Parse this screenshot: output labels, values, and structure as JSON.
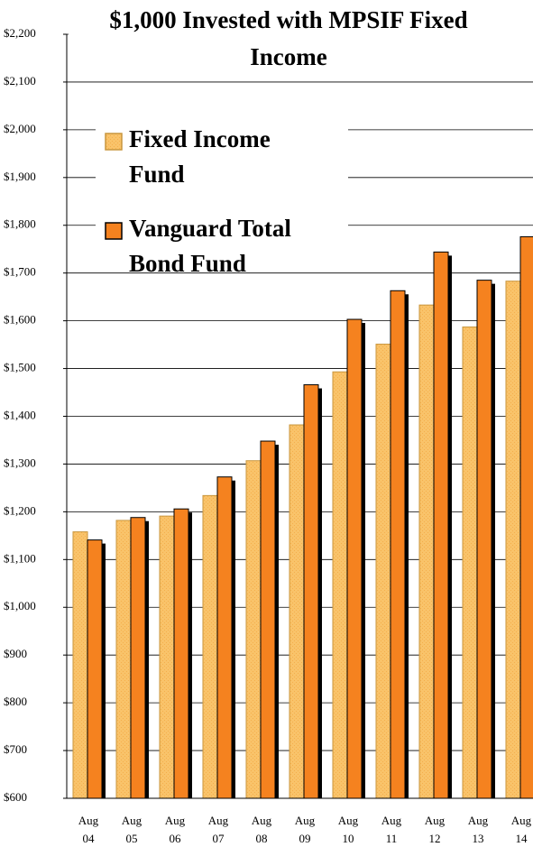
{
  "chart_data": {
    "type": "bar",
    "title": "$1,000 Invested with MPSIF Fixed Income",
    "categories": [
      "Aug 04",
      "Aug 05",
      "Aug 06",
      "Aug 07",
      "Aug 08",
      "Aug 09",
      "Aug 10",
      "Aug 11",
      "Aug 12",
      "Aug 13",
      "Aug 14"
    ],
    "series": [
      {
        "name": "Fixed Income Fund",
        "color": "#f9c36a",
        "values": [
          1158,
          1182,
          1191,
          1234,
          1307,
          1382,
          1493,
          1551,
          1633,
          1587,
          1683
        ]
      },
      {
        "name": "Vanguard Total Bond Fund",
        "color": "#f5821f",
        "values": [
          1141,
          1188,
          1206,
          1273,
          1348,
          1466,
          1603,
          1663,
          1744,
          1685,
          1776
        ]
      }
    ],
    "ylim": [
      600,
      2200
    ],
    "yticks": [
      {
        "value": 600,
        "label": "$600"
      },
      {
        "value": 700,
        "label": "$700"
      },
      {
        "value": 800,
        "label": "$800"
      },
      {
        "value": 900,
        "label": "$900"
      },
      {
        "value": 1000,
        "label": "$1,000"
      },
      {
        "value": 1100,
        "label": "$1,100"
      },
      {
        "value": 1200,
        "label": "$1,200"
      },
      {
        "value": 1300,
        "label": "$1,300"
      },
      {
        "value": 1400,
        "label": "$1,400"
      },
      {
        "value": 1500,
        "label": "$1,500"
      },
      {
        "value": 1600,
        "label": "$1,600"
      },
      {
        "value": 1700,
        "label": "$1,700"
      },
      {
        "value": 1800,
        "label": "$1,800"
      },
      {
        "value": 1900,
        "label": "$1,900"
      },
      {
        "value": 2000,
        "label": "$2,000"
      },
      {
        "value": 2100,
        "label": "$2,100"
      },
      {
        "value": 2200,
        "label": "$2,200"
      }
    ],
    "grid": true,
    "legend": "upper left"
  }
}
